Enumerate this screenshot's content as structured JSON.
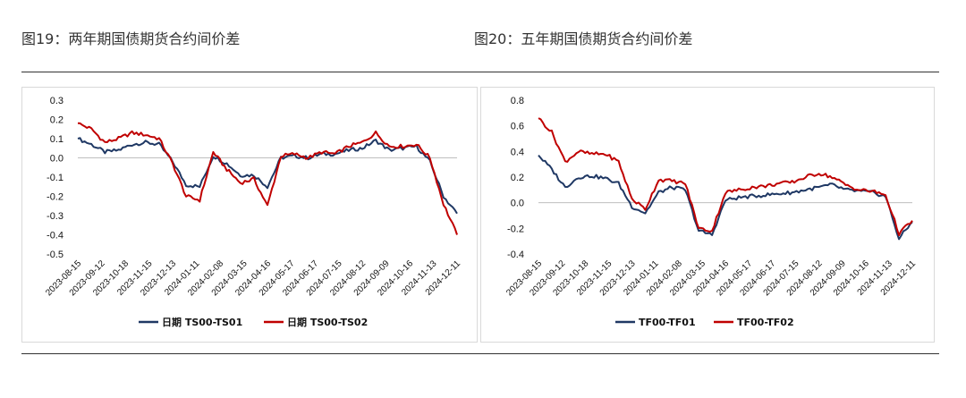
{
  "figures": [
    {
      "title": "图19：两年期国债期货合约间价差"
    },
    {
      "title": "图20：五年期国债期货合约间价差"
    }
  ],
  "chart_data": [
    {
      "type": "line",
      "ylim": [
        -0.5,
        0.3
      ],
      "yticks": [
        "0.3",
        "0.2",
        "0.1",
        "0.0",
        "-0.1",
        "-0.2",
        "-0.3",
        "-0.4",
        "-0.5"
      ],
      "x_labels": [
        "2023-08-15",
        "2023-09-12",
        "2023-10-18",
        "2023-11-15",
        "2023-12-13",
        "2024-01-11",
        "2024-02-08",
        "2024-03-15",
        "2024-04-16",
        "2024-05-17",
        "2024-06-17",
        "2024-07-15",
        "2024-08-12",
        "2024-09-09",
        "2024-10-16",
        "2024-11-13",
        "2024-12-11"
      ],
      "grid": false,
      "legend_position": "bottom",
      "series": [
        {
          "name": "日期 TS00-TS01",
          "color": "#1f3864",
          "values": [
            0.1,
            0.07,
            0.03,
            0.04,
            0.07,
            0.08,
            0.07,
            -0.02,
            -0.14,
            -0.15,
            0.01,
            -0.03,
            -0.09,
            -0.09,
            -0.15,
            0.0,
            0.01,
            0.0,
            0.02,
            0.02,
            0.04,
            0.05,
            0.09,
            0.04,
            0.05,
            0.06,
            -0.02,
            -0.2,
            -0.29
          ]
        },
        {
          "name": "日期 TS00-TS02",
          "color": "#c00000",
          "values": [
            0.18,
            0.15,
            0.08,
            0.1,
            0.13,
            0.12,
            0.1,
            -0.03,
            -0.2,
            -0.22,
            0.03,
            -0.06,
            -0.13,
            -0.11,
            -0.25,
            0.01,
            0.02,
            0.0,
            0.03,
            0.02,
            0.06,
            0.08,
            0.13,
            0.06,
            0.06,
            0.07,
            0.0,
            -0.24,
            -0.4
          ]
        }
      ]
    },
    {
      "type": "line",
      "ylim": [
        -0.4,
        0.8
      ],
      "yticks": [
        "0.8",
        "0.6",
        "0.4",
        "0.2",
        "0.0",
        "-0.2",
        "-0.4"
      ],
      "x_labels": [
        "2023-08-15",
        "2023-09-12",
        "2023-10-18",
        "2023-11-15",
        "2023-12-13",
        "2024-01-11",
        "2024-02-08",
        "2024-03-15",
        "2024-04-16",
        "2024-05-17",
        "2024-06-17",
        "2024-07-15",
        "2024-08-12",
        "2024-09-09",
        "2024-10-16",
        "2024-11-13",
        "2024-12-11"
      ],
      "grid": false,
      "legend_position": "bottom",
      "series": [
        {
          "name": "TF00-TF01",
          "color": "#1f3864",
          "values": [
            0.37,
            0.26,
            0.12,
            0.2,
            0.21,
            0.19,
            0.15,
            -0.03,
            -0.08,
            0.08,
            0.12,
            0.1,
            -0.22,
            -0.25,
            0.02,
            0.04,
            0.05,
            0.06,
            0.07,
            0.08,
            0.1,
            0.12,
            0.14,
            0.1,
            0.09,
            0.08,
            0.05,
            -0.28,
            -0.15
          ]
        },
        {
          "name": "TF00-TF02",
          "color": "#c00000",
          "values": [
            0.66,
            0.55,
            0.32,
            0.4,
            0.38,
            0.38,
            0.32,
            0.03,
            -0.05,
            0.18,
            0.17,
            0.15,
            -0.2,
            -0.22,
            0.08,
            0.1,
            0.12,
            0.13,
            0.15,
            0.16,
            0.2,
            0.23,
            0.2,
            0.14,
            0.1,
            0.09,
            0.06,
            -0.24,
            -0.14
          ]
        }
      ]
    }
  ]
}
